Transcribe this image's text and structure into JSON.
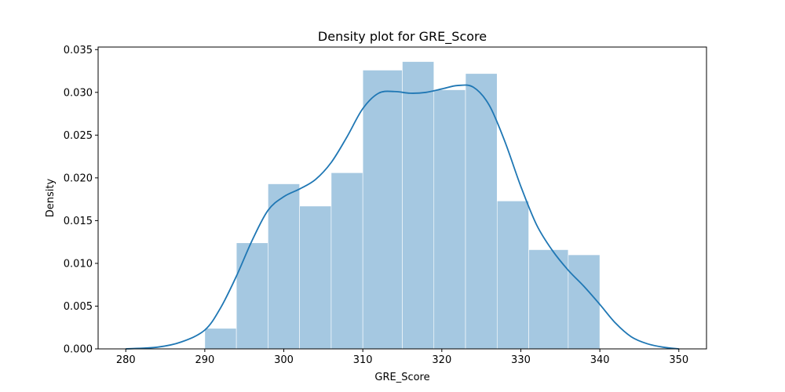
{
  "chart_data": {
    "type": "bar",
    "title": "Density plot for GRE_Score",
    "xlabel": "GRE_Score",
    "ylabel": "Density",
    "xlim": [
      276.5,
      353.5
    ],
    "ylim": [
      0,
      0.0353
    ],
    "xticks": [
      280,
      290,
      300,
      310,
      320,
      330,
      340,
      350
    ],
    "yticks": [
      0.0,
      0.005,
      0.01,
      0.015,
      0.02,
      0.025,
      0.03,
      0.035
    ],
    "xtick_labels": [
      "280",
      "290",
      "300",
      "310",
      "320",
      "330",
      "340",
      "350"
    ],
    "ytick_labels": [
      "0.000",
      "0.005",
      "0.010",
      "0.015",
      "0.020",
      "0.025",
      "0.030",
      "0.035"
    ],
    "grid": false,
    "histogram": {
      "bin_edges": [
        290,
        294,
        298,
        302,
        306,
        310,
        315,
        319,
        323,
        327,
        331,
        336,
        340
      ],
      "values": [
        0.0024,
        0.0124,
        0.0193,
        0.0167,
        0.0206,
        0.0326,
        0.0336,
        0.0303,
        0.0322,
        0.0173,
        0.0116,
        0.011
      ],
      "color": "#a5c8e1"
    },
    "kde": {
      "x": [
        280,
        284,
        287,
        290,
        292,
        294,
        296,
        298,
        300,
        302,
        304,
        306,
        308,
        310,
        312,
        314,
        316,
        318,
        320,
        322,
        324,
        326,
        328,
        330,
        332,
        334,
        336,
        338,
        340,
        342,
        344,
        346,
        348,
        350
      ],
      "y": [
        0.0,
        0.0002,
        0.0008,
        0.0022,
        0.0048,
        0.0085,
        0.0127,
        0.0162,
        0.0178,
        0.0187,
        0.0198,
        0.0218,
        0.0248,
        0.0281,
        0.0299,
        0.0301,
        0.0299,
        0.03,
        0.0304,
        0.0308,
        0.0306,
        0.0285,
        0.0242,
        0.019,
        0.0145,
        0.0115,
        0.0092,
        0.0073,
        0.0052,
        0.003,
        0.0014,
        0.0006,
        0.0002,
        0.0
      ],
      "color": "#1f77b4"
    }
  }
}
